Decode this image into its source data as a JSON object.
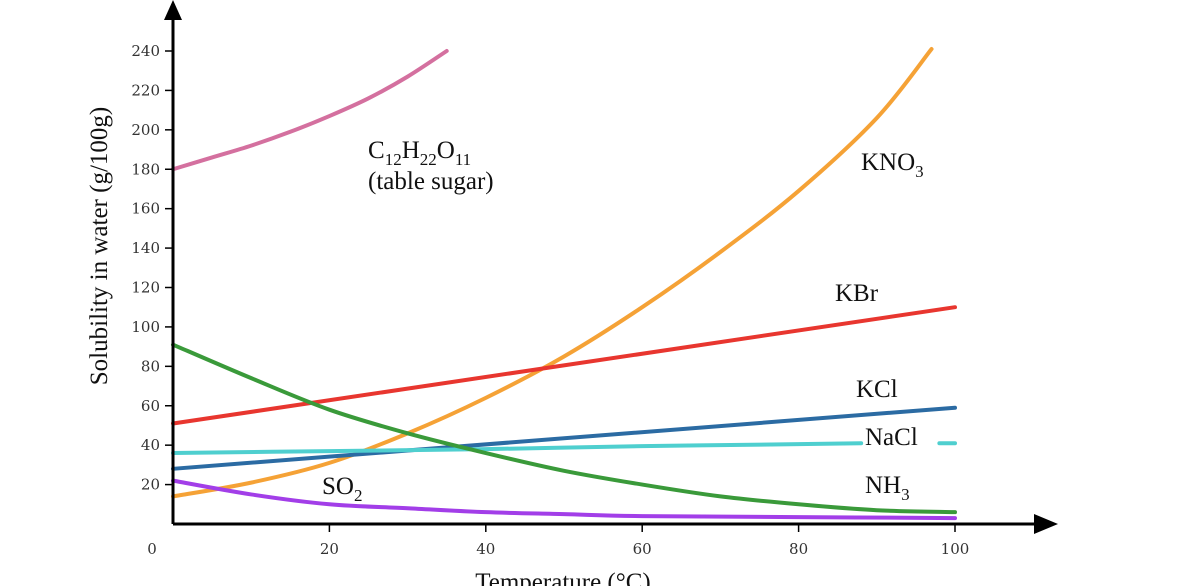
{
  "chart_data": {
    "type": "line",
    "title": "",
    "xlabel": "Temperature (°C)",
    "ylabel": "Solubility in water (g/100g)",
    "xlim": [
      0,
      100
    ],
    "ylim": [
      0,
      245
    ],
    "x_ticks": [
      0,
      20,
      40,
      60,
      80,
      100
    ],
    "y_ticks": [
      20,
      40,
      60,
      80,
      100,
      120,
      140,
      160,
      180,
      200,
      220,
      240
    ],
    "grid": false,
    "series": [
      {
        "key": "sugar",
        "name": "C12H22O11 (table sugar)",
        "label_parts": [
          "C",
          "12",
          "H",
          "22",
          "O",
          "11"
        ],
        "label_line2": "(table sugar)",
        "color": "#d4709f",
        "x": [
          0,
          5,
          10,
          15,
          20,
          25,
          30,
          35
        ],
        "y": [
          180,
          186,
          192,
          199,
          207,
          216,
          227,
          240
        ]
      },
      {
        "key": "kno3",
        "name": "KNO3",
        "label_parts": [
          "KNO",
          "3"
        ],
        "color": "#f5a236",
        "x": [
          0,
          10,
          20,
          30,
          40,
          50,
          60,
          70,
          80,
          90,
          97
        ],
        "y": [
          14,
          21,
          31,
          46,
          64,
          85,
          110,
          138,
          169,
          206,
          241
        ]
      },
      {
        "key": "kbr",
        "name": "KBr",
        "label_parts": [
          "KBr"
        ],
        "color": "#e8362f",
        "x": [
          0,
          100
        ],
        "y": [
          51,
          110
        ]
      },
      {
        "key": "kcl",
        "name": "KCl",
        "label_parts": [
          "KCl"
        ],
        "color": "#2b6ba3",
        "x": [
          0,
          100
        ],
        "y": [
          28,
          59
        ]
      },
      {
        "key": "nacl",
        "name": "NaCl",
        "label_parts": [
          "NaCl"
        ],
        "color": "#4fcfcf",
        "x": [
          0,
          20,
          40,
          60,
          80,
          88
        ],
        "y": [
          36,
          37,
          38,
          39.5,
          40.5,
          41
        ],
        "dash": {
          "x": [
            98,
            100
          ],
          "y": [
            41,
            41
          ]
        }
      },
      {
        "key": "nh3",
        "name": "NH3",
        "label_parts": [
          "NH",
          "3"
        ],
        "color": "#3a9a3a",
        "x": [
          0,
          10,
          20,
          30,
          40,
          50,
          60,
          70,
          80,
          90,
          100
        ],
        "y": [
          91,
          74,
          58,
          46,
          36,
          27,
          20,
          14,
          10,
          7,
          6
        ]
      },
      {
        "key": "so2",
        "name": "SO2",
        "label_parts": [
          "SO",
          "2"
        ],
        "color": "#a23ee8",
        "x": [
          0,
          10,
          20,
          30,
          40,
          50,
          60,
          80,
          100
        ],
        "y": [
          22,
          15,
          10,
          8,
          6,
          5,
          4,
          3.5,
          3
        ]
      }
    ]
  }
}
